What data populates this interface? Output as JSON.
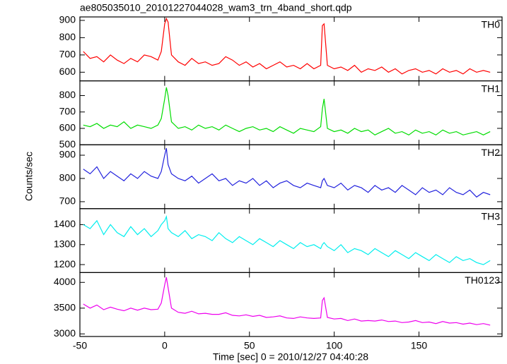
{
  "chart_data": [
    {
      "type": "line",
      "title": "ae805035010_20101227044028_wam3_trn_4band_short.qdp",
      "x": [
        -48,
        -44,
        -40,
        -36,
        -32,
        -28,
        -24,
        -20,
        -16,
        -12,
        -8,
        -4,
        -2,
        0,
        1,
        2,
        4,
        8,
        12,
        16,
        20,
        24,
        28,
        32,
        36,
        40,
        44,
        48,
        52,
        56,
        60,
        64,
        68,
        72,
        76,
        80,
        84,
        88,
        92,
        93,
        94,
        96,
        100,
        104,
        108,
        112,
        116,
        120,
        124,
        128,
        132,
        136,
        140,
        144,
        148,
        152,
        156,
        160,
        164,
        168,
        172,
        176,
        180,
        184,
        188,
        192
      ],
      "series": [
        {
          "name": "TH0",
          "color": "#ff0000",
          "values": [
            720,
            680,
            690,
            660,
            700,
            670,
            650,
            680,
            660,
            700,
            690,
            670,
            720,
            880,
            910,
            890,
            700,
            660,
            640,
            680,
            650,
            660,
            640,
            650,
            690,
            670,
            640,
            660,
            630,
            650,
            620,
            640,
            660,
            630,
            640,
            620,
            650,
            620,
            640,
            870,
            880,
            640,
            620,
            630,
            610,
            640,
            600,
            620,
            610,
            630,
            600,
            620,
            590,
            610,
            620,
            600,
            610,
            590,
            620,
            600,
            610,
            590,
            620,
            600,
            610,
            600
          ]
        }
      ],
      "xlim": [
        -50,
        199
      ],
      "xticks": [
        -50,
        0,
        50,
        100,
        150
      ],
      "ylim": [
        550,
        920
      ],
      "yticks": [
        600,
        700,
        800,
        900
      ]
    },
    {
      "type": "line",
      "x": [
        -48,
        -44,
        -40,
        -36,
        -32,
        -28,
        -24,
        -20,
        -16,
        -12,
        -8,
        -4,
        -2,
        0,
        1,
        2,
        4,
        8,
        12,
        16,
        20,
        24,
        28,
        32,
        36,
        40,
        44,
        48,
        52,
        56,
        60,
        64,
        68,
        72,
        76,
        80,
        84,
        88,
        92,
        93,
        94,
        96,
        100,
        104,
        108,
        112,
        116,
        120,
        124,
        128,
        132,
        136,
        140,
        144,
        148,
        152,
        156,
        160,
        164,
        168,
        172,
        176,
        180,
        184,
        188,
        192
      ],
      "series": [
        {
          "name": "TH1",
          "color": "#00dd00",
          "values": [
            620,
            610,
            630,
            600,
            620,
            610,
            640,
            600,
            620,
            610,
            600,
            620,
            660,
            780,
            850,
            800,
            640,
            600,
            610,
            590,
            620,
            600,
            610,
            590,
            620,
            600,
            580,
            600,
            610,
            590,
            600,
            580,
            610,
            590,
            570,
            600,
            590,
            580,
            610,
            720,
            780,
            600,
            580,
            590,
            570,
            600,
            580,
            590,
            560,
            580,
            600,
            570,
            580,
            560,
            590,
            570,
            580,
            560,
            590,
            570,
            580,
            560,
            570,
            580,
            560,
            580
          ]
        }
      ],
      "xlim": [
        -50,
        199
      ],
      "xticks": [
        -50,
        0,
        50,
        100,
        150
      ],
      "ylim": [
        500,
        890
      ],
      "yticks": [
        500,
        600,
        700,
        800
      ]
    },
    {
      "type": "line",
      "ylabel": "Counts/sec",
      "x": [
        -48,
        -44,
        -40,
        -36,
        -32,
        -28,
        -24,
        -20,
        -16,
        -12,
        -8,
        -4,
        -2,
        0,
        1,
        2,
        4,
        8,
        12,
        16,
        20,
        24,
        28,
        32,
        36,
        40,
        44,
        48,
        52,
        56,
        60,
        64,
        68,
        72,
        76,
        80,
        84,
        88,
        92,
        93,
        94,
        96,
        100,
        104,
        108,
        112,
        116,
        120,
        124,
        128,
        132,
        136,
        140,
        144,
        148,
        152,
        156,
        160,
        164,
        168,
        172,
        176,
        180,
        184,
        188,
        192
      ],
      "series": [
        {
          "name": "TH2",
          "color": "#2222dd",
          "values": [
            840,
            820,
            850,
            800,
            830,
            810,
            790,
            820,
            800,
            830,
            810,
            800,
            830,
            900,
            930,
            860,
            820,
            800,
            790,
            810,
            780,
            800,
            820,
            790,
            800,
            770,
            790,
            780,
            800,
            770,
            790,
            760,
            780,
            790,
            770,
            760,
            780,
            770,
            760,
            790,
            800,
            770,
            760,
            780,
            750,
            770,
            760,
            740,
            770,
            750,
            760,
            740,
            770,
            750,
            730,
            760,
            740,
            750,
            730,
            760,
            740,
            730,
            750,
            720,
            740,
            730
          ]
        }
      ],
      "xlim": [
        -50,
        199
      ],
      "xticks": [
        -50,
        0,
        50,
        100,
        150
      ],
      "ylim": [
        670,
        945
      ],
      "yticks": [
        700,
        800,
        900
      ]
    },
    {
      "type": "line",
      "x": [
        -48,
        -44,
        -40,
        -36,
        -32,
        -28,
        -24,
        -20,
        -16,
        -12,
        -8,
        -4,
        -2,
        0,
        1,
        2,
        4,
        8,
        12,
        16,
        20,
        24,
        28,
        32,
        36,
        40,
        44,
        48,
        52,
        56,
        60,
        64,
        68,
        72,
        76,
        80,
        84,
        88,
        92,
        93,
        94,
        96,
        100,
        104,
        108,
        112,
        116,
        120,
        124,
        128,
        132,
        136,
        140,
        144,
        148,
        152,
        156,
        160,
        164,
        168,
        172,
        176,
        180,
        184,
        188,
        192
      ],
      "series": [
        {
          "name": "TH3",
          "color": "#00eeee",
          "values": [
            1400,
            1380,
            1420,
            1350,
            1400,
            1360,
            1340,
            1390,
            1350,
            1380,
            1340,
            1370,
            1400,
            1420,
            1440,
            1380,
            1360,
            1340,
            1370,
            1330,
            1350,
            1340,
            1320,
            1360,
            1330,
            1310,
            1340,
            1320,
            1300,
            1330,
            1310,
            1290,
            1320,
            1300,
            1280,
            1310,
            1290,
            1300,
            1280,
            1300,
            1310,
            1290,
            1270,
            1300,
            1260,
            1280,
            1270,
            1250,
            1280,
            1260,
            1240,
            1270,
            1250,
            1230,
            1260,
            1240,
            1220,
            1250,
            1230,
            1210,
            1240,
            1220,
            1230,
            1210,
            1200,
            1220
          ]
        }
      ],
      "xlim": [
        -50,
        199
      ],
      "xticks": [
        -50,
        0,
        50,
        100,
        150
      ],
      "ylim": [
        1160,
        1480
      ],
      "yticks": [
        1200,
        1300,
        1400
      ]
    },
    {
      "type": "line",
      "xlabel": "Time [sec] 0 = 2010/12/27 04:40:28",
      "x": [
        -48,
        -44,
        -40,
        -36,
        -32,
        -28,
        -24,
        -20,
        -16,
        -12,
        -8,
        -4,
        -2,
        0,
        1,
        2,
        4,
        8,
        12,
        16,
        20,
        24,
        28,
        32,
        36,
        40,
        44,
        48,
        52,
        56,
        60,
        64,
        68,
        72,
        76,
        80,
        84,
        88,
        92,
        93,
        94,
        96,
        100,
        104,
        108,
        112,
        116,
        120,
        124,
        128,
        132,
        136,
        140,
        144,
        148,
        152,
        156,
        160,
        164,
        168,
        172,
        176,
        180,
        184,
        188,
        192
      ],
      "series": [
        {
          "name": "TH0123",
          "color": "#ee00ee",
          "values": [
            3580,
            3500,
            3560,
            3470,
            3520,
            3480,
            3450,
            3500,
            3460,
            3500,
            3470,
            3480,
            3600,
            3950,
            4100,
            3900,
            3500,
            3420,
            3400,
            3440,
            3390,
            3400,
            3380,
            3380,
            3410,
            3360,
            3350,
            3370,
            3340,
            3360,
            3320,
            3330,
            3350,
            3310,
            3300,
            3330,
            3310,
            3300,
            3310,
            3650,
            3700,
            3320,
            3290,
            3300,
            3260,
            3290,
            3250,
            3260,
            3250,
            3270,
            3240,
            3250,
            3220,
            3230,
            3260,
            3220,
            3230,
            3200,
            3240,
            3210,
            3220,
            3190,
            3210,
            3180,
            3200,
            3170
          ]
        }
      ],
      "xlim": [
        -50,
        199
      ],
      "xticks": [
        -50,
        0,
        50,
        100,
        150
      ],
      "ylim": [
        2950,
        4190
      ],
      "yticks": [
        3000,
        3500,
        4000
      ]
    }
  ]
}
